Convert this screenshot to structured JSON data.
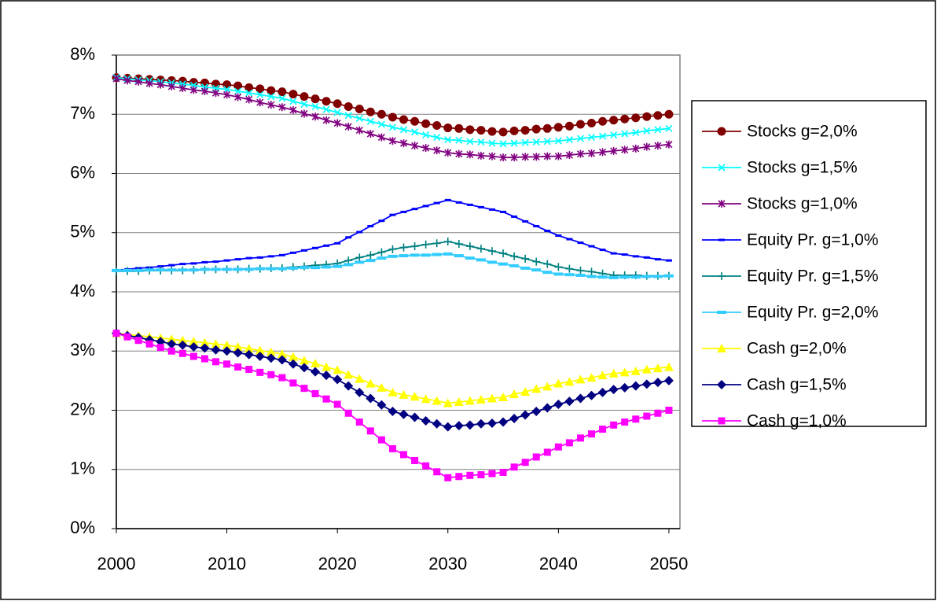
{
  "chart_data": {
    "type": "line",
    "x": [
      2000,
      2001,
      2002,
      2003,
      2004,
      2005,
      2006,
      2007,
      2008,
      2009,
      2010,
      2011,
      2012,
      2013,
      2014,
      2015,
      2016,
      2017,
      2018,
      2019,
      2020,
      2021,
      2022,
      2023,
      2024,
      2025,
      2026,
      2027,
      2028,
      2029,
      2030,
      2031,
      2032,
      2033,
      2034,
      2035,
      2036,
      2037,
      2038,
      2039,
      2040,
      2041,
      2042,
      2043,
      2044,
      2045,
      2046,
      2047,
      2048,
      2049,
      2050
    ],
    "xlim": [
      2000,
      2051
    ],
    "xticks": [
      2000,
      2010,
      2020,
      2030,
      2040,
      2050
    ],
    "ylim": [
      0,
      8
    ],
    "yticks": [
      {
        "value": 0,
        "label": "0%"
      },
      {
        "value": 1,
        "label": "1%"
      },
      {
        "value": 2,
        "label": "2%"
      },
      {
        "value": 3,
        "label": "3%"
      },
      {
        "value": 4,
        "label": "4%"
      },
      {
        "value": 5,
        "label": "5%"
      },
      {
        "value": 6,
        "label": "6%"
      },
      {
        "value": 7,
        "label": "7%"
      },
      {
        "value": 8,
        "label": "8%"
      }
    ],
    "grid": true,
    "legend": "right",
    "series": [
      {
        "name": "Stocks g=2,0%",
        "color": "#800000",
        "marker": "circle",
        "values": [
          7.62,
          7.61,
          7.6,
          7.59,
          7.58,
          7.57,
          7.56,
          7.54,
          7.53,
          7.51,
          7.5,
          7.48,
          7.45,
          7.43,
          7.4,
          7.38,
          7.34,
          7.3,
          7.26,
          7.22,
          7.18,
          7.13,
          7.09,
          7.04,
          7.0,
          6.95,
          6.91,
          6.88,
          6.84,
          6.81,
          6.77,
          6.76,
          6.74,
          6.73,
          6.71,
          6.7,
          6.72,
          6.73,
          6.75,
          6.76,
          6.78,
          6.8,
          6.83,
          6.85,
          6.88,
          6.9,
          6.92,
          6.94,
          6.96,
          6.98,
          7.0
        ]
      },
      {
        "name": "Stocks g=1,5%",
        "color": "#00ffff",
        "marker": "x",
        "values": [
          7.62,
          7.6,
          7.58,
          7.57,
          7.55,
          7.53,
          7.51,
          7.49,
          7.46,
          7.44,
          7.42,
          7.39,
          7.36,
          7.33,
          7.3,
          7.27,
          7.22,
          7.17,
          7.13,
          7.08,
          7.03,
          6.98,
          6.93,
          6.88,
          6.83,
          6.78,
          6.74,
          6.7,
          6.65,
          6.61,
          6.57,
          6.56,
          6.54,
          6.53,
          6.51,
          6.5,
          6.51,
          6.52,
          6.53,
          6.54,
          6.55,
          6.57,
          6.59,
          6.61,
          6.63,
          6.65,
          6.67,
          6.69,
          6.72,
          6.74,
          6.76
        ]
      },
      {
        "name": "Stocks g=1,0%",
        "color": "#800080",
        "marker": "star",
        "values": [
          7.6,
          7.57,
          7.55,
          7.52,
          7.5,
          7.47,
          7.44,
          7.41,
          7.39,
          7.36,
          7.33,
          7.29,
          7.25,
          7.2,
          7.16,
          7.12,
          7.07,
          7.01,
          6.96,
          6.9,
          6.85,
          6.79,
          6.73,
          6.67,
          6.61,
          6.55,
          6.51,
          6.47,
          6.43,
          6.39,
          6.35,
          6.33,
          6.32,
          6.3,
          6.29,
          6.27,
          6.27,
          6.28,
          6.28,
          6.29,
          6.29,
          6.31,
          6.33,
          6.34,
          6.36,
          6.38,
          6.4,
          6.42,
          6.45,
          6.47,
          6.49
        ]
      },
      {
        "name": "Equity Pr. g=1,0%",
        "color": "#0000ff",
        "marker": "dash",
        "values": [
          4.36,
          4.38,
          4.4,
          4.41,
          4.43,
          4.45,
          4.47,
          4.48,
          4.5,
          4.51,
          4.53,
          4.55,
          4.57,
          4.58,
          4.6,
          4.62,
          4.66,
          4.7,
          4.74,
          4.78,
          4.82,
          4.92,
          5.01,
          5.11,
          5.2,
          5.3,
          5.35,
          5.4,
          5.45,
          5.5,
          5.55,
          5.51,
          5.47,
          5.43,
          5.39,
          5.35,
          5.27,
          5.19,
          5.11,
          5.03,
          4.95,
          4.89,
          4.83,
          4.77,
          4.71,
          4.65,
          4.63,
          4.6,
          4.58,
          4.55,
          4.53
        ]
      },
      {
        "name": "Equity Pr. g=1,5%",
        "color": "#008080",
        "marker": "plus",
        "values": [
          4.35,
          4.35,
          4.35,
          4.36,
          4.36,
          4.36,
          4.36,
          4.37,
          4.37,
          4.38,
          4.38,
          4.38,
          4.39,
          4.39,
          4.4,
          4.4,
          4.42,
          4.43,
          4.45,
          4.46,
          4.48,
          4.53,
          4.58,
          4.62,
          4.67,
          4.72,
          4.75,
          4.77,
          4.8,
          4.82,
          4.85,
          4.81,
          4.77,
          4.73,
          4.69,
          4.65,
          4.6,
          4.56,
          4.51,
          4.47,
          4.42,
          4.39,
          4.36,
          4.34,
          4.31,
          4.28,
          4.28,
          4.28,
          4.27,
          4.27,
          4.27
        ]
      },
      {
        "name": "Equity Pr. g=2,0%",
        "color": "#33ccff",
        "marker": "widedash",
        "values": [
          4.36,
          4.36,
          4.36,
          4.37,
          4.37,
          4.37,
          4.37,
          4.37,
          4.38,
          4.38,
          4.38,
          4.38,
          4.38,
          4.39,
          4.39,
          4.39,
          4.4,
          4.41,
          4.41,
          4.42,
          4.43,
          4.46,
          4.5,
          4.53,
          4.57,
          4.6,
          4.61,
          4.62,
          4.62,
          4.63,
          4.64,
          4.61,
          4.57,
          4.54,
          4.5,
          4.47,
          4.44,
          4.4,
          4.37,
          4.33,
          4.3,
          4.29,
          4.28,
          4.26,
          4.25,
          4.24,
          4.25,
          4.25,
          4.26,
          4.26,
          4.27
        ]
      },
      {
        "name": "Cash g=2,0%",
        "color": "#ffff00",
        "marker": "triangle",
        "values": [
          3.3,
          3.28,
          3.26,
          3.24,
          3.22,
          3.2,
          3.18,
          3.16,
          3.14,
          3.12,
          3.1,
          3.07,
          3.04,
          3.01,
          2.98,
          2.95,
          2.9,
          2.84,
          2.79,
          2.73,
          2.68,
          2.6,
          2.53,
          2.45,
          2.38,
          2.3,
          2.26,
          2.23,
          2.19,
          2.16,
          2.12,
          2.14,
          2.16,
          2.18,
          2.2,
          2.22,
          2.27,
          2.31,
          2.36,
          2.4,
          2.45,
          2.48,
          2.52,
          2.55,
          2.59,
          2.62,
          2.64,
          2.66,
          2.69,
          2.71,
          2.73
        ]
      },
      {
        "name": "Cash g=1,5%",
        "color": "#000080",
        "marker": "diamond",
        "values": [
          3.3,
          3.26,
          3.23,
          3.19,
          3.16,
          3.12,
          3.1,
          3.07,
          3.05,
          3.02,
          3.0,
          2.97,
          2.94,
          2.91,
          2.88,
          2.85,
          2.78,
          2.72,
          2.65,
          2.59,
          2.52,
          2.41,
          2.3,
          2.2,
          2.09,
          1.98,
          1.93,
          1.88,
          1.82,
          1.77,
          1.72,
          1.74,
          1.75,
          1.77,
          1.78,
          1.8,
          1.86,
          1.92,
          1.98,
          2.04,
          2.1,
          2.15,
          2.2,
          2.25,
          2.3,
          2.35,
          2.38,
          2.41,
          2.44,
          2.47,
          2.5
        ]
      },
      {
        "name": "Cash g=1,0%",
        "color": "#ff00ff",
        "marker": "square",
        "values": [
          3.3,
          3.24,
          3.18,
          3.12,
          3.06,
          3.0,
          2.96,
          2.91,
          2.87,
          2.82,
          2.78,
          2.73,
          2.69,
          2.64,
          2.6,
          2.55,
          2.46,
          2.37,
          2.28,
          2.19,
          2.1,
          1.95,
          1.8,
          1.65,
          1.5,
          1.35,
          1.25,
          1.15,
          1.06,
          0.96,
          0.86,
          0.88,
          0.9,
          0.91,
          0.93,
          0.95,
          1.04,
          1.12,
          1.21,
          1.29,
          1.38,
          1.45,
          1.53,
          1.6,
          1.68,
          1.75,
          1.8,
          1.85,
          1.9,
          1.95,
          2.0
        ]
      }
    ]
  }
}
